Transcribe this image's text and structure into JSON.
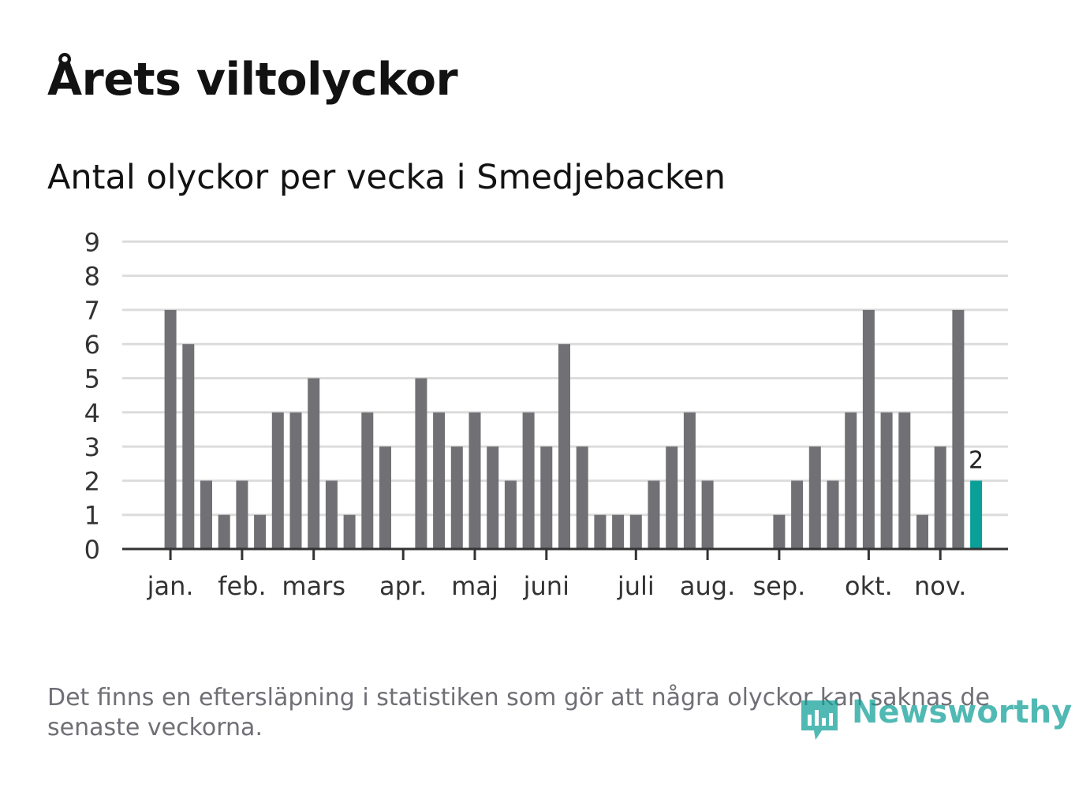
{
  "title": "Årets viltolyckor",
  "subtitle": "Antal olyckor per vecka i Smedjebacken",
  "footnote": "Det finns en eftersläpning i statistiken som gör att några olyckor kan saknas de senaste veckorna.",
  "brand": {
    "name": "Newsworthy",
    "icon": "newsworthy-logo-icon",
    "color": "#0f9f97"
  },
  "colors": {
    "bar": "#707075",
    "highlight": "#0a9f98",
    "grid": "#dcdcdc",
    "axis": "#333333",
    "text": "#333333"
  },
  "chart_data": {
    "type": "bar",
    "title": "Antal olyckor per vecka i Smedjebacken",
    "xlabel": "",
    "ylabel": "",
    "ylim": [
      0,
      9
    ],
    "yticks": [
      "0",
      "1",
      "2",
      "3",
      "4",
      "5",
      "6",
      "7",
      "8",
      "9"
    ],
    "grid": true,
    "weeks": [
      1,
      2,
      3,
      4,
      5,
      6,
      7,
      8,
      9,
      10,
      11,
      12,
      13,
      14,
      15,
      16,
      17,
      18,
      19,
      20,
      21,
      22,
      23,
      24,
      25,
      26,
      27,
      28,
      29,
      30,
      31,
      32,
      33,
      34,
      35,
      36,
      37,
      38,
      39,
      40,
      41,
      42,
      43,
      44,
      45,
      46,
      47,
      48,
      49,
      50
    ],
    "values": [
      0,
      0,
      0,
      7,
      6,
      2,
      1,
      2,
      1,
      4,
      4,
      5,
      2,
      1,
      4,
      3,
      0,
      5,
      4,
      3,
      4,
      3,
      2,
      4,
      3,
      6,
      3,
      1,
      1,
      1,
      2,
      3,
      4,
      2,
      0,
      0,
      0,
      1,
      2,
      3,
      2,
      4,
      7,
      4,
      4,
      1,
      3,
      7,
      2,
      0
    ],
    "highlight_index": 48,
    "highlight_label": "2",
    "month_labels": [
      {
        "label": "jan.",
        "pos": 3.0
      },
      {
        "label": "feb.",
        "pos": 7.0
      },
      {
        "label": "mars",
        "pos": 11.0
      },
      {
        "label": "apr.",
        "pos": 16.0
      },
      {
        "label": "maj",
        "pos": 20.0
      },
      {
        "label": "juni",
        "pos": 24.0
      },
      {
        "label": "juli",
        "pos": 29.0
      },
      {
        "label": "aug.",
        "pos": 33.0
      },
      {
        "label": "sep.",
        "pos": 37.0
      },
      {
        "label": "okt.",
        "pos": 42.0
      },
      {
        "label": "nov.",
        "pos": 46.0
      }
    ]
  }
}
